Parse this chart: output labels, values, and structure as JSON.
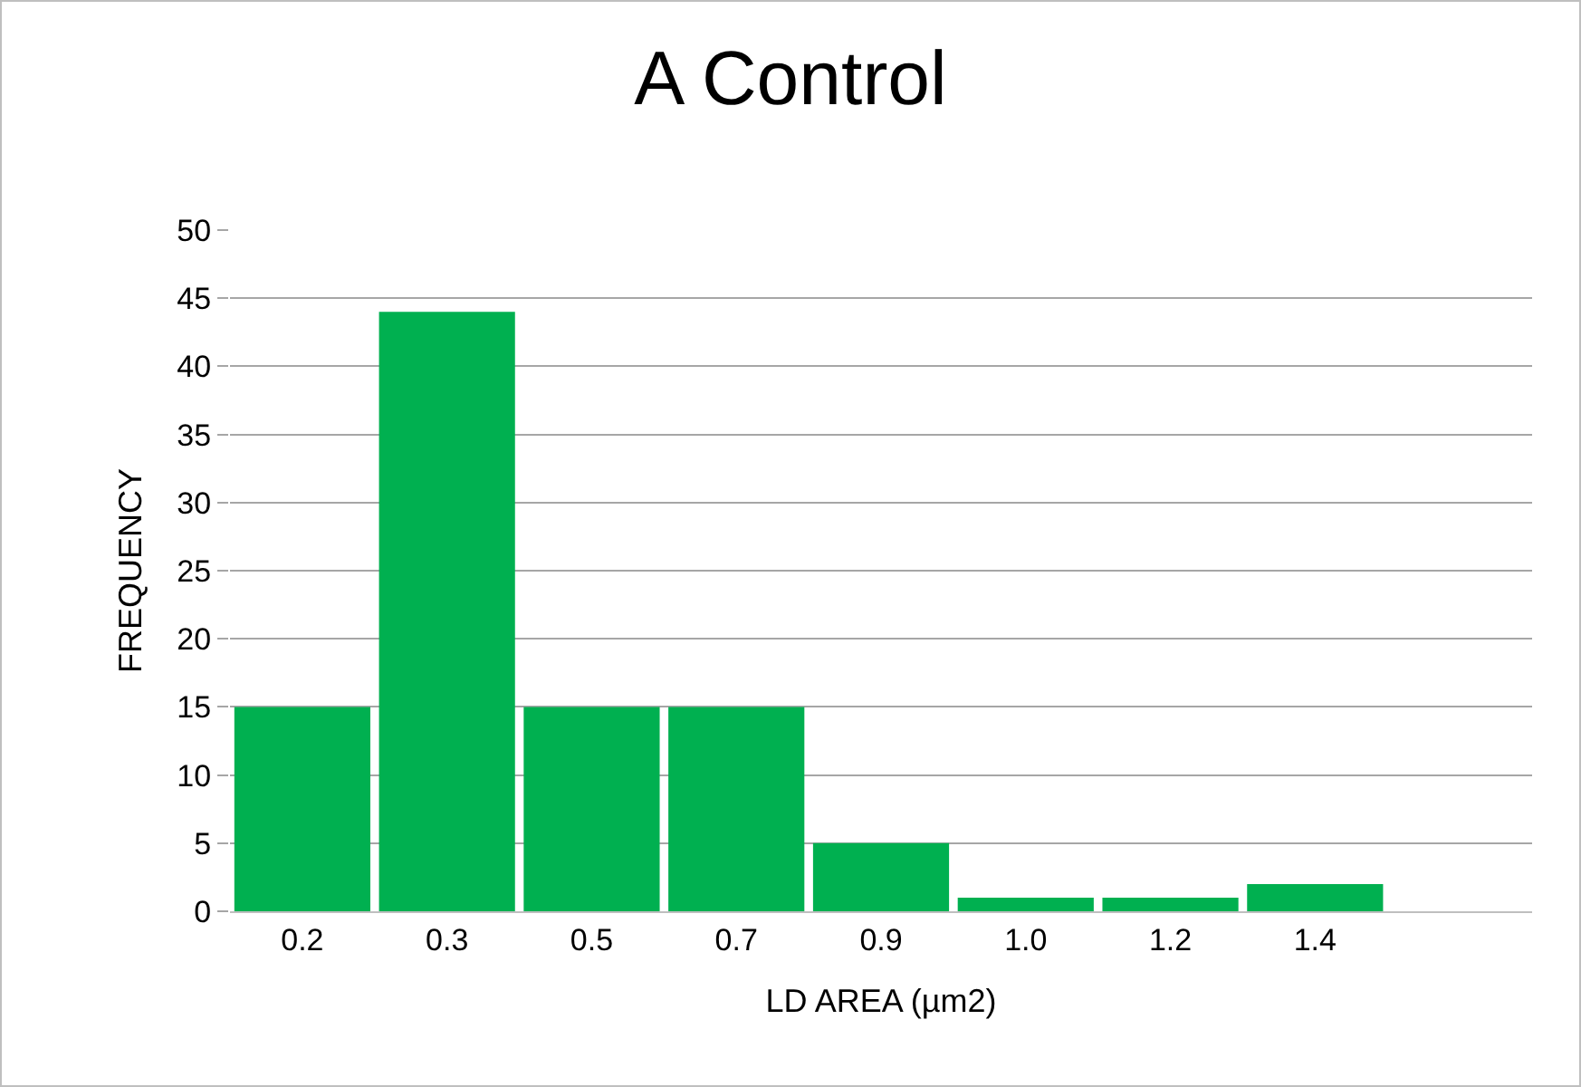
{
  "chart_data": {
    "type": "bar",
    "title": "A Control",
    "xlabel": "LD AREA (µm2)",
    "ylabel": "FREQUENCY",
    "categories": [
      "0.2",
      "0.3",
      "0.5",
      "0.7",
      "0.9",
      "1.0",
      "1.2",
      "1.4",
      null
    ],
    "values": [
      15,
      44,
      15,
      15,
      5,
      1,
      1,
      2,
      0
    ],
    "color": "#00b050",
    "ylim": [
      0,
      50
    ],
    "yticks": [
      0,
      5,
      10,
      15,
      20,
      25,
      30,
      35,
      40,
      45,
      50
    ],
    "grid": "y"
  }
}
